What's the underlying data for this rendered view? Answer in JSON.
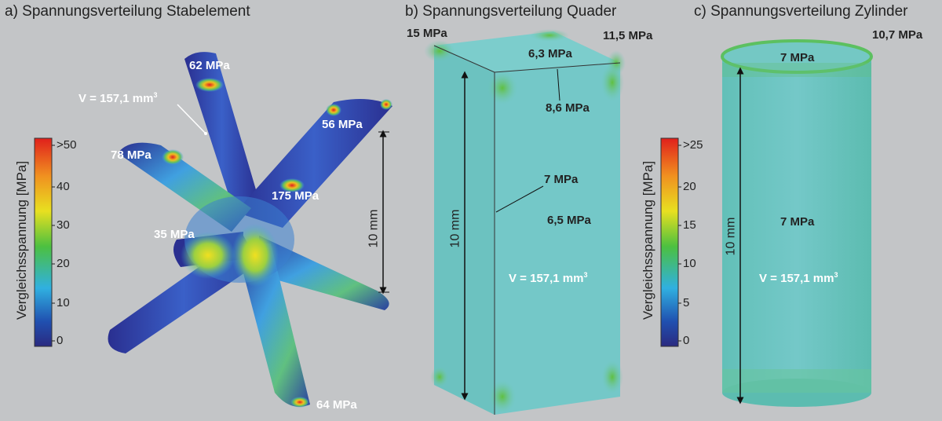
{
  "panel_a": {
    "title": "a) Spannungsverteilung Stabelement",
    "colorbar": {
      "label": "Vergleichsspannung [MPa]",
      "ticks": [
        ">50",
        "40",
        "30",
        "20",
        "10",
        "0"
      ],
      "colors": [
        "#e0201c",
        "#f0a020",
        "#e8e020",
        "#4cc040",
        "#30b0e0",
        "#203a9a",
        "#2a2a80"
      ]
    },
    "labels": {
      "m62": "62 MPa",
      "m56": "56 MPa",
      "m78": "78 MPa",
      "m175": "175 MPa",
      "m35": "35 MPa",
      "m64": "64 MPa",
      "volume": "V = 157,1 mm"
    },
    "dimension": "10 mm"
  },
  "panel_b": {
    "title": "b) Spannungsverteilung Quader",
    "labels": {
      "m15": "15 MPa",
      "m115": "11,5 MPa",
      "m63": "6,3 MPa",
      "m86": "8,6 MPa",
      "m7": "7 MPa",
      "m65": "6,5 MPa",
      "volume": "V = 157,1 mm"
    },
    "dimension": "10 mm"
  },
  "panel_c": {
    "title": "c) Spannungsverteilung Zylinder",
    "colorbar": {
      "label": "Vergleichsspannung [MPa]",
      "ticks": [
        ">25",
        "20",
        "15",
        "10",
        "5",
        "0"
      ]
    },
    "labels": {
      "m107": "10,7 MPa",
      "m7top": "7 MPa",
      "m7mid": "7 MPa",
      "volume": "V = 157,1 mm"
    },
    "dimension": "10 mm"
  },
  "volume_exponent": "3"
}
